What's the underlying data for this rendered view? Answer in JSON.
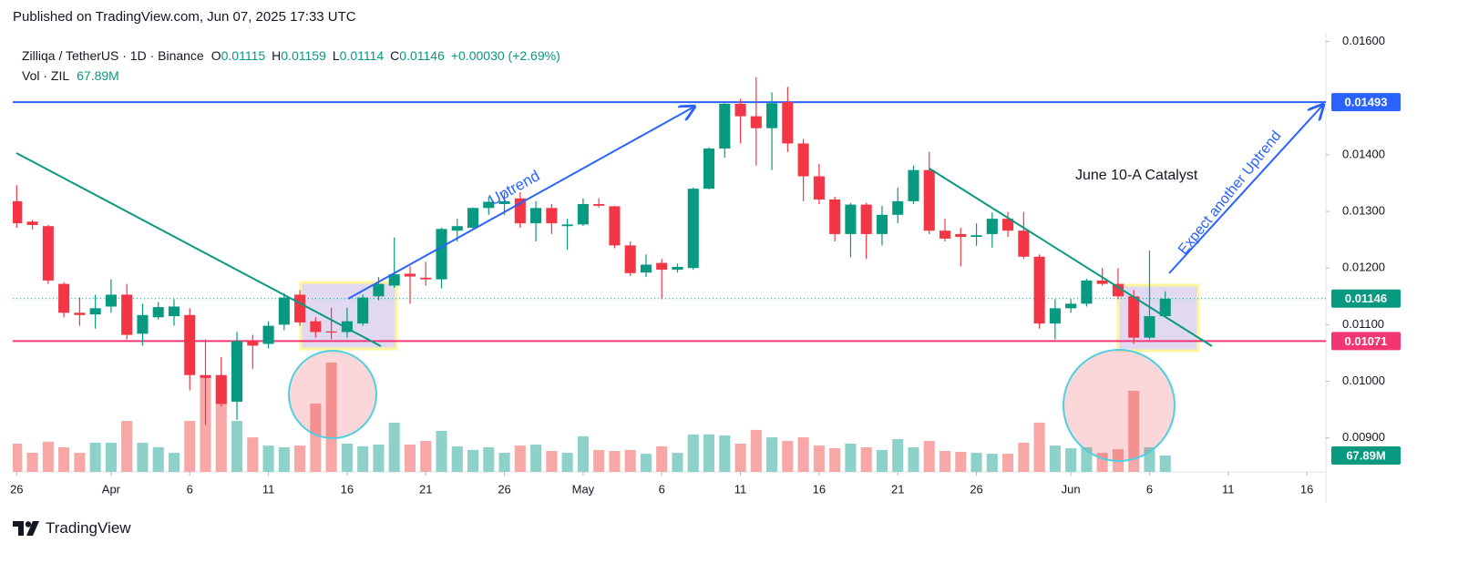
{
  "header": {
    "published": "Published on TradingView.com, Jun 07, 2025 17:33 UTC",
    "symbol": "Zilliqa / TetherUS · 1D · Binance",
    "fields": [
      {
        "key": "O",
        "value": "0.01115"
      },
      {
        "key": "H",
        "value": "0.01159"
      },
      {
        "key": "L",
        "value": "0.01114"
      },
      {
        "key": "C",
        "value": "0.01146"
      }
    ],
    "change": "+0.00030 (+2.69%)",
    "volume_name": "Vol · ZIL"
  },
  "chart_data": {
    "type": "candlestick",
    "x": [
      "2025-03-26",
      "2025-03-27",
      "2025-03-28",
      "2025-03-29",
      "2025-03-30",
      "2025-03-31",
      "2025-04-01",
      "2025-04-02",
      "2025-04-03",
      "2025-04-04",
      "2025-04-05",
      "2025-04-06",
      "2025-04-07",
      "2025-04-08",
      "2025-04-09",
      "2025-04-10",
      "2025-04-11",
      "2025-04-12",
      "2025-04-13",
      "2025-04-14",
      "2025-04-15",
      "2025-04-16",
      "2025-04-17",
      "2025-04-18",
      "2025-04-19",
      "2025-04-20",
      "2025-04-21",
      "2025-04-22",
      "2025-04-23",
      "2025-04-24",
      "2025-04-25",
      "2025-04-26",
      "2025-04-27",
      "2025-04-28",
      "2025-04-29",
      "2025-04-30",
      "2025-05-01",
      "2025-05-02",
      "2025-05-03",
      "2025-05-04",
      "2025-05-05",
      "2025-05-06",
      "2025-05-07",
      "2025-05-08",
      "2025-05-09",
      "2025-05-10",
      "2025-05-11",
      "2025-05-12",
      "2025-05-13",
      "2025-05-14",
      "2025-05-15",
      "2025-05-16",
      "2025-05-17",
      "2025-05-18",
      "2025-05-19",
      "2025-05-20",
      "2025-05-21",
      "2025-05-22",
      "2025-05-23",
      "2025-05-24",
      "2025-05-25",
      "2025-05-26",
      "2025-05-27",
      "2025-05-28",
      "2025-05-29",
      "2025-05-30",
      "2025-05-31",
      "2025-06-01",
      "2025-06-02",
      "2025-06-03",
      "2025-06-04",
      "2025-06-05",
      "2025-06-06",
      "2025-06-07"
    ],
    "open": [
      0.01318,
      0.01282,
      0.01274,
      0.01172,
      0.01121,
      0.01118,
      0.01132,
      0.01153,
      0.01084,
      0.01113,
      0.01115,
      0.01117,
      0.01011,
      0.01011,
      0.00964,
      0.01071,
      0.01066,
      0.011,
      0.01153,
      0.01106,
      0.01088,
      0.01087,
      0.01102,
      0.0115,
      0.01169,
      0.0119,
      0.01183,
      0.0118,
      0.01266,
      0.01271,
      0.01306,
      0.01313,
      0.01323,
      0.01279,
      0.01306,
      0.01274,
      0.01277,
      0.01313,
      0.01309,
      0.0124,
      0.01192,
      0.01209,
      0.01197,
      0.012,
      0.0134,
      0.01411,
      0.0149,
      0.01468,
      0.01447,
      0.01493,
      0.0142,
      0.01362,
      0.01321,
      0.0126,
      0.01312,
      0.0126,
      0.01294,
      0.01318,
      0.01373,
      0.01266,
      0.0126,
      0.01255,
      0.0126,
      0.01287,
      0.01266,
      0.0122,
      0.01102,
      0.01129,
      0.01137,
      0.01178,
      0.01172,
      0.0115,
      0.01077,
      0.01115
    ],
    "high": [
      0.01346,
      0.01285,
      0.01276,
      0.01175,
      0.01148,
      0.01153,
      0.0118,
      0.01172,
      0.01137,
      0.0114,
      0.01145,
      0.01129,
      0.01074,
      0.01043,
      0.01087,
      0.01082,
      0.01106,
      0.01156,
      0.01161,
      0.01113,
      0.0113,
      0.0113,
      0.01153,
      0.01184,
      0.01254,
      0.01203,
      0.01211,
      0.01271,
      0.01287,
      0.01307,
      0.01326,
      0.01334,
      0.01334,
      0.01318,
      0.01313,
      0.01287,
      0.01323,
      0.01323,
      0.0131,
      0.01247,
      0.01224,
      0.01216,
      0.01208,
      0.01342,
      0.01413,
      0.01491,
      0.01499,
      0.01537,
      0.0151,
      0.0152,
      0.01428,
      0.01384,
      0.01326,
      0.01315,
      0.01315,
      0.0131,
      0.01342,
      0.01381,
      0.01405,
      0.01287,
      0.01271,
      0.01279,
      0.01298,
      0.01299,
      0.01299,
      0.01224,
      0.01145,
      0.01145,
      0.01181,
      0.012,
      0.012,
      0.01161,
      0.01231,
      0.01159
    ],
    "low": [
      0.01271,
      0.01268,
      0.01172,
      0.01113,
      0.01098,
      0.01093,
      0.01121,
      0.01074,
      0.01063,
      0.01109,
      0.01098,
      0.00984,
      0.00923,
      0.00956,
      0.00932,
      0.01022,
      0.01058,
      0.0109,
      0.01098,
      0.01077,
      0.01074,
      0.01077,
      0.01098,
      0.01143,
      0.01165,
      0.01137,
      0.01169,
      0.01164,
      0.01247,
      0.0127,
      0.01294,
      0.01294,
      0.01271,
      0.01247,
      0.0126,
      0.01232,
      0.01274,
      0.01307,
      0.01235,
      0.01186,
      0.01184,
      0.01145,
      0.01192,
      0.01197,
      0.01339,
      0.01395,
      0.0142,
      0.01381,
      0.01373,
      0.01405,
      0.01318,
      0.01313,
      0.01247,
      0.01219,
      0.01216,
      0.0124,
      0.01279,
      0.01313,
      0.0126,
      0.01247,
      0.01203,
      0.01239,
      0.01236,
      0.01255,
      0.01216,
      0.01093,
      0.01074,
      0.01121,
      0.01132,
      0.01169,
      0.01145,
      0.01066,
      0.01074,
      0.01114
    ],
    "close": [
      0.01279,
      0.01276,
      0.01178,
      0.01121,
      0.01117,
      0.01129,
      0.01153,
      0.01082,
      0.01117,
      0.01131,
      0.01132,
      0.01011,
      0.01006,
      0.0096,
      0.01071,
      0.01063,
      0.01098,
      0.01148,
      0.01104,
      0.01087,
      0.01086,
      0.01106,
      0.01148,
      0.01172,
      0.01189,
      0.01185,
      0.0118,
      0.01269,
      0.01274,
      0.01306,
      0.01317,
      0.01318,
      0.01279,
      0.01306,
      0.01279,
      0.01277,
      0.01313,
      0.0131,
      0.0124,
      0.01191,
      0.01206,
      0.01197,
      0.01202,
      0.0134,
      0.01411,
      0.0149,
      0.01468,
      0.01447,
      0.01491,
      0.0142,
      0.01362,
      0.01321,
      0.0126,
      0.01312,
      0.0126,
      0.01294,
      0.01318,
      0.01373,
      0.01266,
      0.01252,
      0.01255,
      0.01258,
      0.01287,
      0.01266,
      0.0122,
      0.01102,
      0.01129,
      0.01137,
      0.01178,
      0.01172,
      0.0115,
      0.01077,
      0.01115,
      0.01146
    ],
    "volume": [
      117,
      79,
      125,
      102,
      79,
      121,
      121,
      211,
      121,
      102,
      79,
      211,
      400,
      374,
      211,
      143,
      109,
      102,
      109,
      283,
      453,
      117,
      106,
      113,
      204,
      113,
      128,
      170,
      106,
      91,
      102,
      79,
      109,
      113,
      87,
      79,
      147,
      91,
      87,
      91,
      75,
      106,
      79,
      155,
      155,
      151,
      117,
      174,
      143,
      128,
      143,
      109,
      98,
      117,
      102,
      91,
      136,
      102,
      128,
      87,
      83,
      79,
      75,
      75,
      121,
      204,
      109,
      98,
      102,
      79,
      94,
      336,
      102,
      67.89
    ],
    "volume_last_label": "67.89M",
    "volume_ylim": [
      0,
      1822
    ],
    "up_color": "#089981",
    "down_color": "#f23645",
    "volume_up_color": "#8dd1c8",
    "volume_down_color": "#f6a7a6",
    "xlim": [
      "2025-03-25T18:00",
      "2025-06-17T05:00"
    ],
    "ylim": [
      0.0084,
      0.01617
    ],
    "yticks": [
      {
        "value": 0.016,
        "label": "0.01600"
      },
      {
        "value": 0.014,
        "label": "0.01400"
      },
      {
        "value": 0.013,
        "label": "0.01300"
      },
      {
        "value": 0.012,
        "label": "0.01200"
      },
      {
        "value": 0.011,
        "label": "0.01100"
      },
      {
        "value": 0.01,
        "label": "0.01000"
      },
      {
        "value": 0.009,
        "label": "0.00900"
      }
    ],
    "xticks": [
      {
        "value": "2025-03-26",
        "label": "26"
      },
      {
        "value": "2025-04-01",
        "label": "Apr"
      },
      {
        "value": "2025-04-06",
        "label": "6"
      },
      {
        "value": "2025-04-11",
        "label": "11"
      },
      {
        "value": "2025-04-16",
        "label": "16"
      },
      {
        "value": "2025-04-21",
        "label": "21"
      },
      {
        "value": "2025-04-26",
        "label": "26"
      },
      {
        "value": "2025-05-01",
        "label": "May"
      },
      {
        "value": "2025-05-06",
        "label": "6"
      },
      {
        "value": "2025-05-11",
        "label": "11"
      },
      {
        "value": "2025-05-16",
        "label": "16"
      },
      {
        "value": "2025-05-21",
        "label": "21"
      },
      {
        "value": "2025-05-26",
        "label": "26"
      },
      {
        "value": "2025-06-01",
        "label": "Jun"
      },
      {
        "value": "2025-06-06",
        "label": "6"
      },
      {
        "value": "2025-06-11",
        "label": "11"
      },
      {
        "value": "2025-06-16",
        "label": "16"
      }
    ],
    "grid": false,
    "levels": [
      {
        "value": 0.01493,
        "color": "#2962ff"
      },
      {
        "value": 0.01071,
        "color": "#f23672"
      }
    ],
    "annotations": [
      "Uptrend",
      "June 10-A Catalyst",
      "Expect another Uptrend"
    ]
  },
  "footer": "TradingView"
}
